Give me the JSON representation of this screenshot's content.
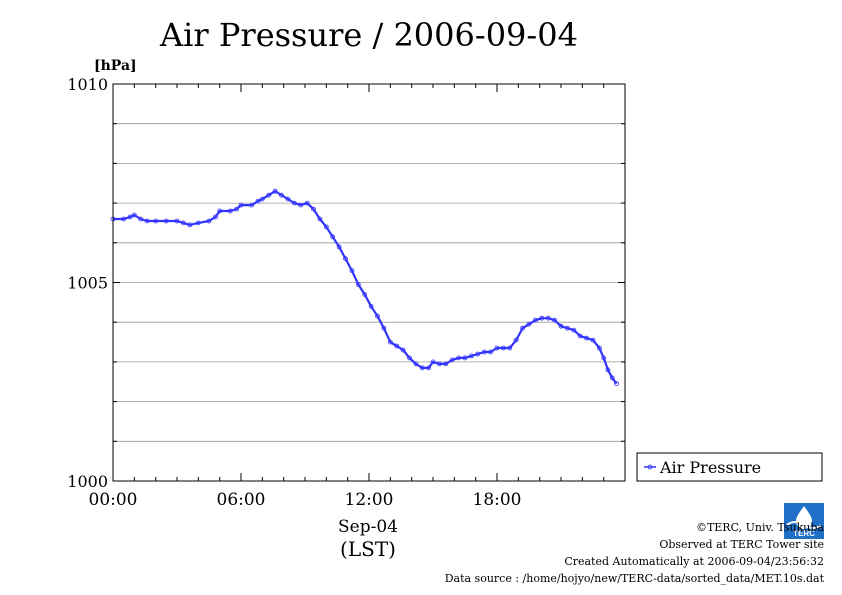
{
  "chart_data": {
    "type": "line",
    "title": "Air Pressure / 2006-09-04",
    "ylabel": "[hPa]",
    "xlabel_date": "Sep-04",
    "xlabel_zone": "(LST)",
    "ylim": [
      1000,
      1010
    ],
    "xlim": [
      0,
      24
    ],
    "y_ticks": [
      {
        "value": 1000,
        "label": "1000"
      },
      {
        "value": 1005,
        "label": "1005"
      },
      {
        "value": 1010,
        "label": "1010"
      }
    ],
    "x_ticks": [
      {
        "value": 0,
        "label": "00:00"
      },
      {
        "value": 6,
        "label": "06:00"
      },
      {
        "value": 12,
        "label": "12:00"
      },
      {
        "value": 18,
        "label": "18:00"
      }
    ],
    "grid": true,
    "legend_position": "right",
    "colors": {
      "series": "#3333ff",
      "grid": "#999999"
    },
    "series": [
      {
        "name": "Air Pressure",
        "points": [
          [
            0.0,
            1006.6
          ],
          [
            0.5,
            1006.6
          ],
          [
            0.8,
            1006.65
          ],
          [
            1.0,
            1006.7
          ],
          [
            1.3,
            1006.6
          ],
          [
            1.6,
            1006.55
          ],
          [
            2.0,
            1006.55
          ],
          [
            2.5,
            1006.55
          ],
          [
            3.0,
            1006.55
          ],
          [
            3.3,
            1006.5
          ],
          [
            3.6,
            1006.45
          ],
          [
            4.0,
            1006.5
          ],
          [
            4.5,
            1006.55
          ],
          [
            4.8,
            1006.65
          ],
          [
            5.0,
            1006.8
          ],
          [
            5.5,
            1006.8
          ],
          [
            5.8,
            1006.85
          ],
          [
            6.0,
            1006.95
          ],
          [
            6.5,
            1006.95
          ],
          [
            6.8,
            1007.05
          ],
          [
            7.0,
            1007.1
          ],
          [
            7.3,
            1007.2
          ],
          [
            7.6,
            1007.3
          ],
          [
            7.9,
            1007.2
          ],
          [
            8.2,
            1007.1
          ],
          [
            8.5,
            1007.0
          ],
          [
            8.8,
            1006.95
          ],
          [
            9.1,
            1007.0
          ],
          [
            9.4,
            1006.85
          ],
          [
            9.7,
            1006.6
          ],
          [
            10.0,
            1006.4
          ],
          [
            10.3,
            1006.15
          ],
          [
            10.6,
            1005.9
          ],
          [
            10.9,
            1005.6
          ],
          [
            11.2,
            1005.3
          ],
          [
            11.5,
            1004.95
          ],
          [
            11.8,
            1004.7
          ],
          [
            12.1,
            1004.4
          ],
          [
            12.4,
            1004.15
          ],
          [
            12.7,
            1003.85
          ],
          [
            13.0,
            1003.5
          ],
          [
            13.3,
            1003.4
          ],
          [
            13.6,
            1003.3
          ],
          [
            13.9,
            1003.1
          ],
          [
            14.2,
            1002.95
          ],
          [
            14.5,
            1002.85
          ],
          [
            14.8,
            1002.85
          ],
          [
            15.0,
            1003.0
          ],
          [
            15.3,
            1002.95
          ],
          [
            15.6,
            1002.95
          ],
          [
            15.9,
            1003.05
          ],
          [
            16.2,
            1003.1
          ],
          [
            16.5,
            1003.1
          ],
          [
            16.8,
            1003.15
          ],
          [
            17.1,
            1003.2
          ],
          [
            17.4,
            1003.25
          ],
          [
            17.7,
            1003.25
          ],
          [
            18.0,
            1003.35
          ],
          [
            18.3,
            1003.35
          ],
          [
            18.6,
            1003.35
          ],
          [
            18.9,
            1003.55
          ],
          [
            19.2,
            1003.85
          ],
          [
            19.5,
            1003.95
          ],
          [
            19.8,
            1004.05
          ],
          [
            20.1,
            1004.1
          ],
          [
            20.4,
            1004.1
          ],
          [
            20.7,
            1004.05
          ],
          [
            21.0,
            1003.9
          ],
          [
            21.3,
            1003.85
          ],
          [
            21.6,
            1003.8
          ],
          [
            21.9,
            1003.65
          ],
          [
            22.2,
            1003.6
          ],
          [
            22.5,
            1003.55
          ],
          [
            22.8,
            1003.35
          ],
          [
            23.0,
            1003.1
          ],
          [
            23.2,
            1002.8
          ],
          [
            23.4,
            1002.6
          ],
          [
            23.6,
            1002.45
          ]
        ]
      }
    ]
  },
  "footer": {
    "copyright": "©TERC, Univ. Tsukuba",
    "observed": "Observed at TERC Tower site",
    "created": "Created Automatically at 2006-09-04/23:56:32",
    "source": "Data source : /home/hojyo/new/TERC-data/sorted_data/MET.10s.dat"
  },
  "logo": {
    "icon": "terc-logo-icon",
    "text": "TERC"
  }
}
